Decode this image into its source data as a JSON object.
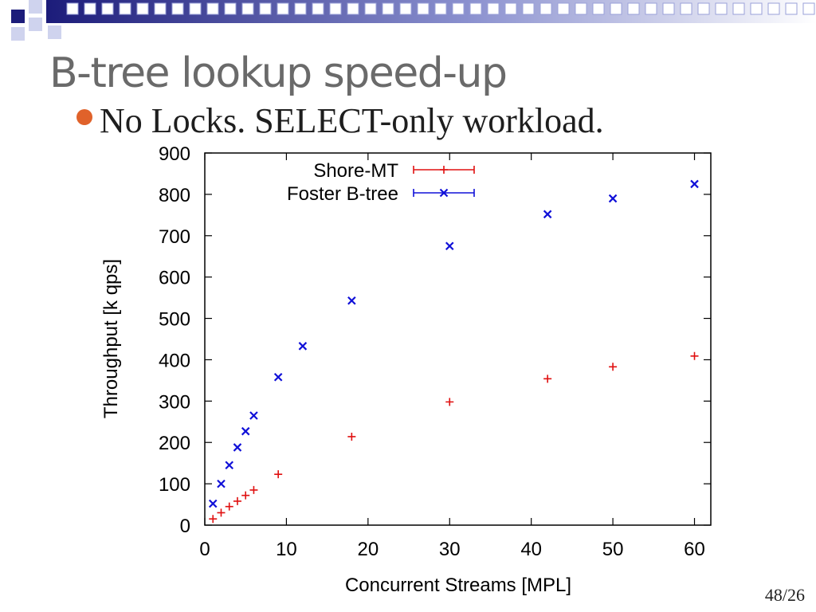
{
  "slide": {
    "title": "B-tree lookup speed-up",
    "bullet": "No Locks. SELECT-only workload.",
    "page_number": "48/26"
  },
  "colors": {
    "header_dark": "#1c1c7a",
    "header_light": "#cfd3ee",
    "bullet": "#e0622a",
    "title": "#6a6a6a",
    "shore_mt": "#e01010",
    "foster": "#1010d8"
  },
  "chart_data": {
    "type": "scatter",
    "title": "",
    "xlabel": "Concurrent Streams [MPL]",
    "ylabel": "Throughput [k qps]",
    "xlim": [
      0,
      62
    ],
    "ylim": [
      0,
      900
    ],
    "xticks": [
      0,
      10,
      20,
      30,
      40,
      50,
      60
    ],
    "yticks": [
      0,
      100,
      200,
      300,
      400,
      500,
      600,
      700,
      800,
      900
    ],
    "legend_position": "top-left",
    "grid": false,
    "series": [
      {
        "name": "Shore-MT",
        "marker": "plus",
        "color": "#e01010",
        "x": [
          1,
          2,
          3,
          4,
          5,
          6,
          9,
          18,
          30,
          42,
          50,
          60
        ],
        "y": [
          15,
          30,
          45,
          58,
          72,
          85,
          123,
          214,
          298,
          354,
          383,
          409
        ]
      },
      {
        "name": "Foster B-tree",
        "marker": "cross",
        "color": "#1010d8",
        "x": [
          1,
          2,
          3,
          4,
          5,
          6,
          9,
          12,
          18,
          30,
          42,
          50,
          60
        ],
        "y": [
          52,
          100,
          145,
          188,
          227,
          265,
          358,
          433,
          543,
          675,
          752,
          790,
          825
        ]
      }
    ]
  }
}
